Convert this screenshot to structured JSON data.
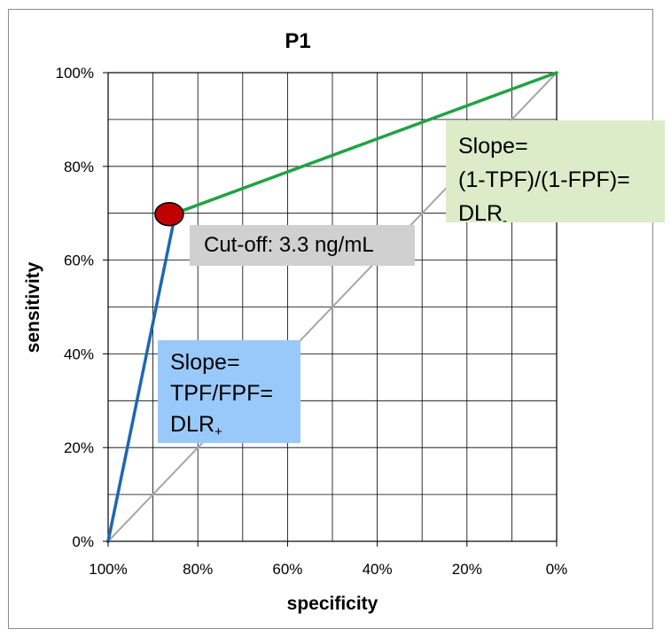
{
  "chart_data": {
    "type": "line",
    "title": "P1",
    "xlabel": "specificity",
    "ylabel": "sensitivity",
    "x_axis": {
      "range": [
        100,
        0
      ],
      "direction": "reversed",
      "tick_labels": [
        "100%",
        "80%",
        "60%",
        "40%",
        "20%",
        "0%"
      ],
      "tick_values": [
        100,
        80,
        60,
        40,
        20,
        0
      ]
    },
    "y_axis": {
      "range": [
        0,
        100
      ],
      "tick_labels": [
        "0%",
        "20%",
        "40%",
        "60%",
        "80%",
        "100%"
      ],
      "tick_values": [
        0,
        20,
        40,
        60,
        80,
        100
      ]
    },
    "grid": true,
    "series": [
      {
        "points": [
          {
            "x": 100,
            "y": 0
          },
          {
            "x": 0,
            "y": 100
          }
        ],
        "color": "#a6a6a6"
      },
      {
        "points": [
          {
            "x": 100,
            "y": 0
          },
          {
            "x": 85,
            "y": 70
          }
        ],
        "color": "#1f66b5"
      },
      {
        "points": [
          {
            "x": 85,
            "y": 70
          },
          {
            "x": 0,
            "y": 100
          }
        ],
        "color": "#1fa345"
      }
    ],
    "marker": {
      "x": 85,
      "y": 70,
      "color": "#c00000"
    },
    "annotations": {
      "green": {
        "line1": "Slope=",
        "line2": "(1-TPF)/(1-FPF)=",
        "line3": "DLR",
        "sub": "-"
      },
      "gray": {
        "text": "Cut-off: 3.3 ng/mL"
      },
      "blue": {
        "line1": "Slope=",
        "line2": "TPF/FPF=",
        "line3": "DLR",
        "sub": "+"
      }
    },
    "colors": {
      "green_box": "#dcebc8",
      "gray_box": "#d0d0d0",
      "blue_box": "#99c9fb"
    }
  }
}
